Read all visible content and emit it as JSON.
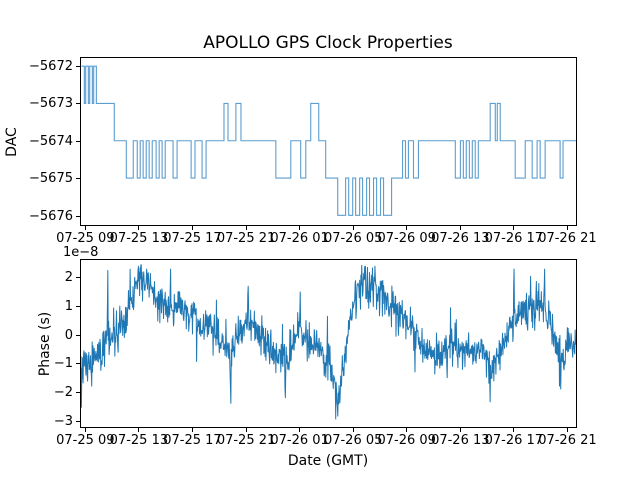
{
  "figure": {
    "title": "APOLLO GPS Clock Properties",
    "background_color": "#ffffff",
    "axes_frame_color": "#000000"
  },
  "chart_data": [
    {
      "type": "line",
      "subplot": "top",
      "drawstyle": "steps-post",
      "ylabel": "DAC",
      "line_color": "#5b9ed0",
      "x_unit": "hours since 07-25 00:00 GMT",
      "xlim": [
        8.6,
        45.64
      ],
      "ylim": [
        -5676.26,
        -5671.78
      ],
      "grid": false,
      "xticks": [
        9,
        13,
        17,
        21,
        25,
        29,
        33,
        37,
        41,
        45
      ],
      "xtick_labels": [
        "07-25 09",
        "07-25 13",
        "07-25 17",
        "07-25 21",
        "07-26 01",
        "07-26 05",
        "07-26 09",
        "07-26 13",
        "07-26 17",
        "07-26 21"
      ],
      "yticks": [
        -5672,
        -5673,
        -5674,
        -5675,
        -5676
      ],
      "ytick_labels": [
        "−5672",
        "−5673",
        "−5674",
        "−5675",
        "−5676"
      ],
      "steps": [
        [
          8.63,
          -5672
        ],
        [
          8.85,
          -5673
        ],
        [
          8.95,
          -5672
        ],
        [
          9.15,
          -5673
        ],
        [
          9.25,
          -5672
        ],
        [
          9.45,
          -5673
        ],
        [
          9.55,
          -5672
        ],
        [
          9.75,
          -5673
        ],
        [
          11.09,
          -5674
        ],
        [
          11.99,
          -5675
        ],
        [
          12.51,
          -5674
        ],
        [
          12.81,
          -5675
        ],
        [
          13.03,
          -5674
        ],
        [
          13.25,
          -5675
        ],
        [
          13.48,
          -5674
        ],
        [
          13.7,
          -5675
        ],
        [
          13.93,
          -5674
        ],
        [
          14.22,
          -5675
        ],
        [
          14.45,
          -5674
        ],
        [
          14.67,
          -5675
        ],
        [
          14.9,
          -5674
        ],
        [
          15.49,
          -5675
        ],
        [
          15.79,
          -5674
        ],
        [
          16.84,
          -5675
        ],
        [
          17.13,
          -5674
        ],
        [
          17.66,
          -5675
        ],
        [
          17.96,
          -5674
        ],
        [
          19.3,
          -5673
        ],
        [
          19.6,
          -5674
        ],
        [
          20.19,
          -5673
        ],
        [
          20.57,
          -5674
        ],
        [
          23.18,
          -5675
        ],
        [
          24.3,
          -5674
        ],
        [
          25.04,
          -5675
        ],
        [
          25.42,
          -5674
        ],
        [
          25.79,
          -5673
        ],
        [
          26.39,
          -5674
        ],
        [
          26.91,
          -5675
        ],
        [
          27.81,
          -5676
        ],
        [
          28.4,
          -5675
        ],
        [
          28.63,
          -5676
        ],
        [
          28.93,
          -5675
        ],
        [
          29.15,
          -5676
        ],
        [
          29.45,
          -5675
        ],
        [
          29.67,
          -5676
        ],
        [
          29.97,
          -5675
        ],
        [
          30.19,
          -5676
        ],
        [
          30.49,
          -5675
        ],
        [
          30.72,
          -5676
        ],
        [
          31.01,
          -5675
        ],
        [
          31.24,
          -5676
        ],
        [
          31.84,
          -5675
        ],
        [
          32.66,
          -5674
        ],
        [
          32.88,
          -5675
        ],
        [
          33.1,
          -5674
        ],
        [
          33.48,
          -5675
        ],
        [
          33.85,
          -5674
        ],
        [
          36.61,
          -5675
        ],
        [
          36.99,
          -5674
        ],
        [
          37.21,
          -5675
        ],
        [
          37.43,
          -5674
        ],
        [
          37.66,
          -5675
        ],
        [
          37.88,
          -5674
        ],
        [
          38.1,
          -5675
        ],
        [
          38.33,
          -5674
        ],
        [
          39.22,
          -5673
        ],
        [
          39.6,
          -5674
        ],
        [
          39.75,
          -5673
        ],
        [
          39.97,
          -5674
        ],
        [
          41.09,
          -5675
        ],
        [
          41.84,
          -5674
        ],
        [
          42.36,
          -5675
        ],
        [
          42.73,
          -5674
        ],
        [
          42.96,
          -5675
        ],
        [
          43.33,
          -5674
        ],
        [
          44.45,
          -5675
        ],
        [
          44.67,
          -5674
        ]
      ]
    },
    {
      "type": "line",
      "subplot": "bottom",
      "ylabel": "Phase (s)",
      "xlabel": "Date (GMT)",
      "y_offset_label": "1e−8",
      "y_scale": 1e-08,
      "line_color": "#1f77b4",
      "x_unit": "hours since 07-25 00:00 GMT",
      "xlim": [
        8.6,
        45.64
      ],
      "ylim": [
        -3.23,
        2.62
      ],
      "grid": false,
      "xticks": [
        9,
        13,
        17,
        21,
        25,
        29,
        33,
        37,
        41,
        45
      ],
      "xtick_labels": [
        "07-25 09",
        "07-25 13",
        "07-25 17",
        "07-25 21",
        "07-26 01",
        "07-26 05",
        "07-26 09",
        "07-26 13",
        "07-26 17",
        "07-26 21"
      ],
      "yticks": [
        2,
        1,
        0,
        -1,
        -2,
        -3
      ],
      "ytick_labels": [
        "2",
        "1",
        "0",
        "−1",
        "−2",
        "−3"
      ],
      "trend_1e8": [
        [
          8.6,
          -1.1
        ],
        [
          9.0,
          -0.8
        ],
        [
          9.4,
          -1.2
        ],
        [
          9.8,
          -0.6
        ],
        [
          10.2,
          -0.5
        ],
        [
          10.6,
          -0.3
        ],
        [
          11.0,
          -0.1
        ],
        [
          11.4,
          0.2
        ],
        [
          11.8,
          0.5
        ],
        [
          12.2,
          1.0
        ],
        [
          12.6,
          1.5
        ],
        [
          12.9,
          1.9
        ],
        [
          13.1,
          2.0
        ],
        [
          13.4,
          1.6
        ],
        [
          13.6,
          1.9
        ],
        [
          13.9,
          1.4
        ],
        [
          14.3,
          1.2
        ],
        [
          14.7,
          1.3
        ],
        [
          15.1,
          1.0
        ],
        [
          15.5,
          0.9
        ],
        [
          15.9,
          1.1
        ],
        [
          16.3,
          0.8
        ],
        [
          16.7,
          0.6
        ],
        [
          17.1,
          0.7
        ],
        [
          17.5,
          0.4
        ],
        [
          17.9,
          0.3
        ],
        [
          18.3,
          0.3
        ],
        [
          18.7,
          0.0
        ],
        [
          19.1,
          -0.2
        ],
        [
          19.5,
          -0.4
        ],
        [
          19.8,
          -0.9
        ],
        [
          20.1,
          -0.3
        ],
        [
          20.5,
          0.1
        ],
        [
          20.9,
          0.3
        ],
        [
          21.2,
          0.5
        ],
        [
          21.6,
          0.2
        ],
        [
          22.0,
          0.1
        ],
        [
          22.4,
          -0.2
        ],
        [
          22.8,
          -0.4
        ],
        [
          23.2,
          -0.6
        ],
        [
          23.6,
          -0.8
        ],
        [
          23.9,
          -1.1
        ],
        [
          24.2,
          -0.6
        ],
        [
          24.6,
          -0.1
        ],
        [
          24.9,
          0.3
        ],
        [
          25.2,
          0.1
        ],
        [
          25.6,
          -0.2
        ],
        [
          26.0,
          -0.3
        ],
        [
          26.4,
          -0.4
        ],
        [
          26.8,
          -0.7
        ],
        [
          27.2,
          -1.0
        ],
        [
          27.5,
          -1.6
        ],
        [
          27.8,
          -2.6
        ],
        [
          28.0,
          -1.9
        ],
        [
          28.3,
          -0.9
        ],
        [
          28.6,
          0.2
        ],
        [
          28.9,
          0.8
        ],
        [
          29.2,
          1.3
        ],
        [
          29.5,
          1.7
        ],
        [
          29.8,
          1.9
        ],
        [
          30.1,
          1.6
        ],
        [
          30.4,
          1.7
        ],
        [
          30.7,
          1.4
        ],
        [
          31.0,
          1.5
        ],
        [
          31.4,
          1.2
        ],
        [
          31.8,
          1.1
        ],
        [
          32.2,
          0.9
        ],
        [
          32.6,
          0.7
        ],
        [
          33.0,
          0.4
        ],
        [
          33.4,
          0.2
        ],
        [
          33.8,
          -0.1
        ],
        [
          34.2,
          -0.4
        ],
        [
          34.6,
          -0.6
        ],
        [
          35.0,
          -0.7
        ],
        [
          35.4,
          -0.8
        ],
        [
          35.8,
          -0.6
        ],
        [
          36.2,
          -0.5
        ],
        [
          36.6,
          -0.4
        ],
        [
          37.0,
          -0.6
        ],
        [
          37.4,
          -0.5
        ],
        [
          37.8,
          -0.7
        ],
        [
          38.2,
          -0.6
        ],
        [
          38.6,
          -0.5
        ],
        [
          39.0,
          -0.8
        ],
        [
          39.3,
          -1.3
        ],
        [
          39.6,
          -0.9
        ],
        [
          40.0,
          -0.5
        ],
        [
          40.4,
          -0.1
        ],
        [
          40.8,
          0.3
        ],
        [
          41.2,
          0.7
        ],
        [
          41.6,
          0.9
        ],
        [
          42.0,
          1.0
        ],
        [
          42.4,
          1.1
        ],
        [
          42.8,
          1.2
        ],
        [
          43.2,
          1.0
        ],
        [
          43.5,
          0.7
        ],
        [
          43.8,
          0.3
        ],
        [
          44.1,
          -0.3
        ],
        [
          44.4,
          -0.7
        ],
        [
          44.7,
          -0.9
        ],
        [
          45.0,
          -0.3
        ],
        [
          45.3,
          -0.1
        ],
        [
          45.6,
          -0.5
        ]
      ],
      "spikes_1e8": [
        [
          9.4,
          -1.8
        ],
        [
          10.6,
          2.25
        ],
        [
          12.9,
          2.4
        ],
        [
          13.5,
          2.3
        ],
        [
          15.3,
          2.3
        ],
        [
          19.8,
          -2.4
        ],
        [
          21.1,
          1.7
        ],
        [
          23.9,
          -2.2
        ],
        [
          25.0,
          1.5
        ],
        [
          27.8,
          -2.85
        ],
        [
          29.9,
          2.4
        ],
        [
          30.6,
          2.4
        ],
        [
          33.6,
          -1.3
        ],
        [
          36.0,
          -1.5
        ],
        [
          39.2,
          -2.35
        ],
        [
          41.0,
          2.3
        ],
        [
          43.3,
          2.3
        ],
        [
          44.5,
          -1.9
        ]
      ],
      "noise_sigma_1e8": 0.32
    }
  ]
}
